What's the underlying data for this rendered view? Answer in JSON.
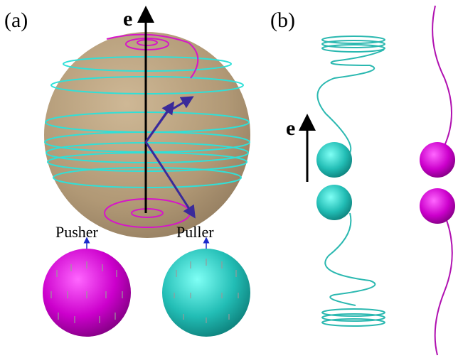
{
  "panel_a": {
    "label": "(a)",
    "axis_label": "e",
    "pusher_label": "Pusher",
    "puller_label": "Puller"
  },
  "panel_b": {
    "label": "(b)",
    "axis_label": "e"
  }
}
